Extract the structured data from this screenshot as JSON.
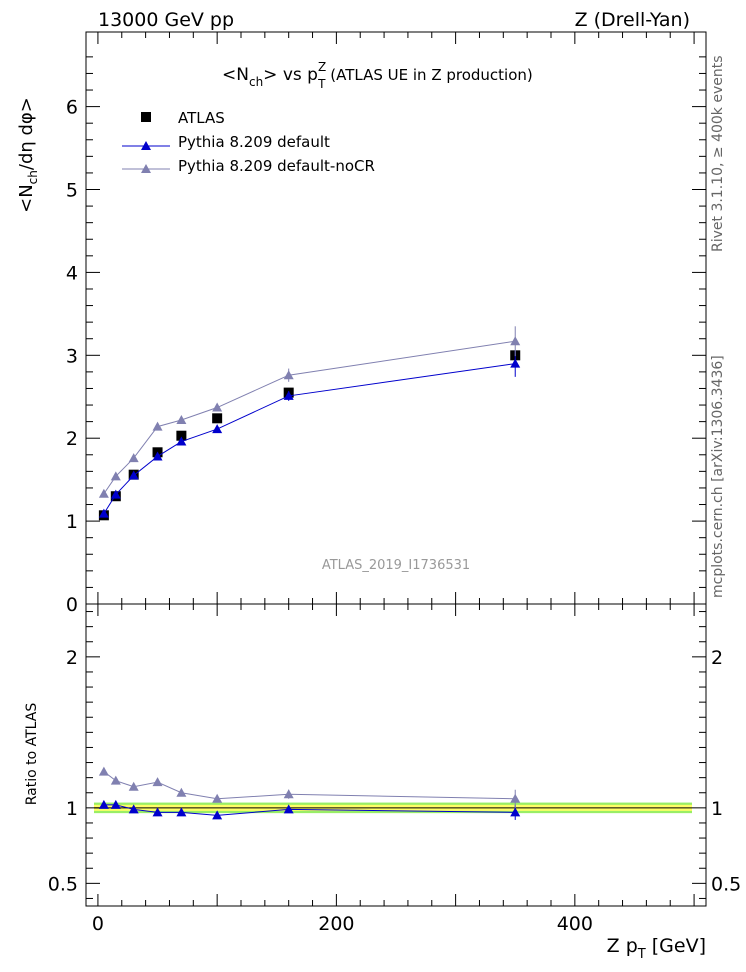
{
  "header": {
    "energy_label": "13000 GeV pp",
    "process_label": "Z (Drell-Yan)"
  },
  "side_labels": {
    "rivet": "Rivet 3.1.10, ≥ 400k events",
    "mcplots": "mcplots.cern.ch [arXiv:1306.3436]"
  },
  "chart_data": {
    "type": "line",
    "title": {
      "lhs": "<N",
      "lhs_sub": "ch",
      "mid": "> vs p",
      "p_sup": "Z",
      "p_sub": "T",
      "rest": " (ATLAS UE in Z production)"
    },
    "analysis_id": "ATLAS_2019_I1736531",
    "xlabel": {
      "main": "Z p",
      "sub": "T",
      "unit": " [GeV]"
    },
    "ylabel_main": {
      "a": "<N",
      "sub": "ch",
      "b": "/dη dφ>"
    },
    "ylabel_ratio": "Ratio to ATLAS",
    "xlim": [
      -10,
      510
    ],
    "ylim_main": [
      0,
      6.9
    ],
    "ylim_ratio": [
      0.35,
      2.35
    ],
    "x_ticks": [
      0,
      200,
      400
    ],
    "y_ticks_main": [
      0,
      1,
      2,
      3,
      4,
      5,
      6
    ],
    "y_ticks_ratio": [
      0.5,
      1,
      2
    ],
    "legend_position": "top-left",
    "x": [
      5,
      15,
      30,
      50,
      70,
      100,
      160,
      350
    ],
    "series": [
      {
        "name": "ATLAS",
        "kind": "data",
        "color": "#000000",
        "marker": "square",
        "values": [
          1.07,
          1.3,
          1.56,
          1.83,
          2.03,
          2.24,
          2.55,
          3.0
        ],
        "errors": [
          0.04,
          0.03,
          0.03,
          0.03,
          0.03,
          0.04,
          0.05,
          0.06
        ]
      },
      {
        "name": "Pythia 8.209 default",
        "kind": "mc",
        "color": "#0000cc",
        "marker": "triangle",
        "values": [
          1.09,
          1.32,
          1.55,
          1.78,
          1.96,
          2.11,
          2.51,
          2.9
        ],
        "errors": [
          0.02,
          0.02,
          0.02,
          0.02,
          0.02,
          0.03,
          0.06,
          0.16
        ],
        "ratio": [
          1.02,
          1.02,
          0.99,
          0.97,
          0.97,
          0.95,
          0.99,
          0.97
        ],
        "ratio_errors": [
          0.01,
          0.01,
          0.01,
          0.01,
          0.01,
          0.01,
          0.02,
          0.05
        ]
      },
      {
        "name": "Pythia 8.209 default-noCR",
        "kind": "mc",
        "color": "#8080b0",
        "marker": "triangle",
        "values": [
          1.33,
          1.54,
          1.76,
          2.14,
          2.22,
          2.37,
          2.76,
          3.17
        ],
        "errors": [
          0.02,
          0.02,
          0.02,
          0.02,
          0.03,
          0.04,
          0.08,
          0.18
        ],
        "ratio": [
          1.24,
          1.18,
          1.14,
          1.17,
          1.1,
          1.06,
          1.09,
          1.06
        ],
        "ratio_errors": [
          0.01,
          0.01,
          0.01,
          0.01,
          0.01,
          0.02,
          0.03,
          0.06
        ]
      }
    ],
    "ratio_band": {
      "inner_color": "#ffff66",
      "outer_color": "#99ee66",
      "inner_half_width": 0.02,
      "outer_half_width": 0.035
    }
  }
}
